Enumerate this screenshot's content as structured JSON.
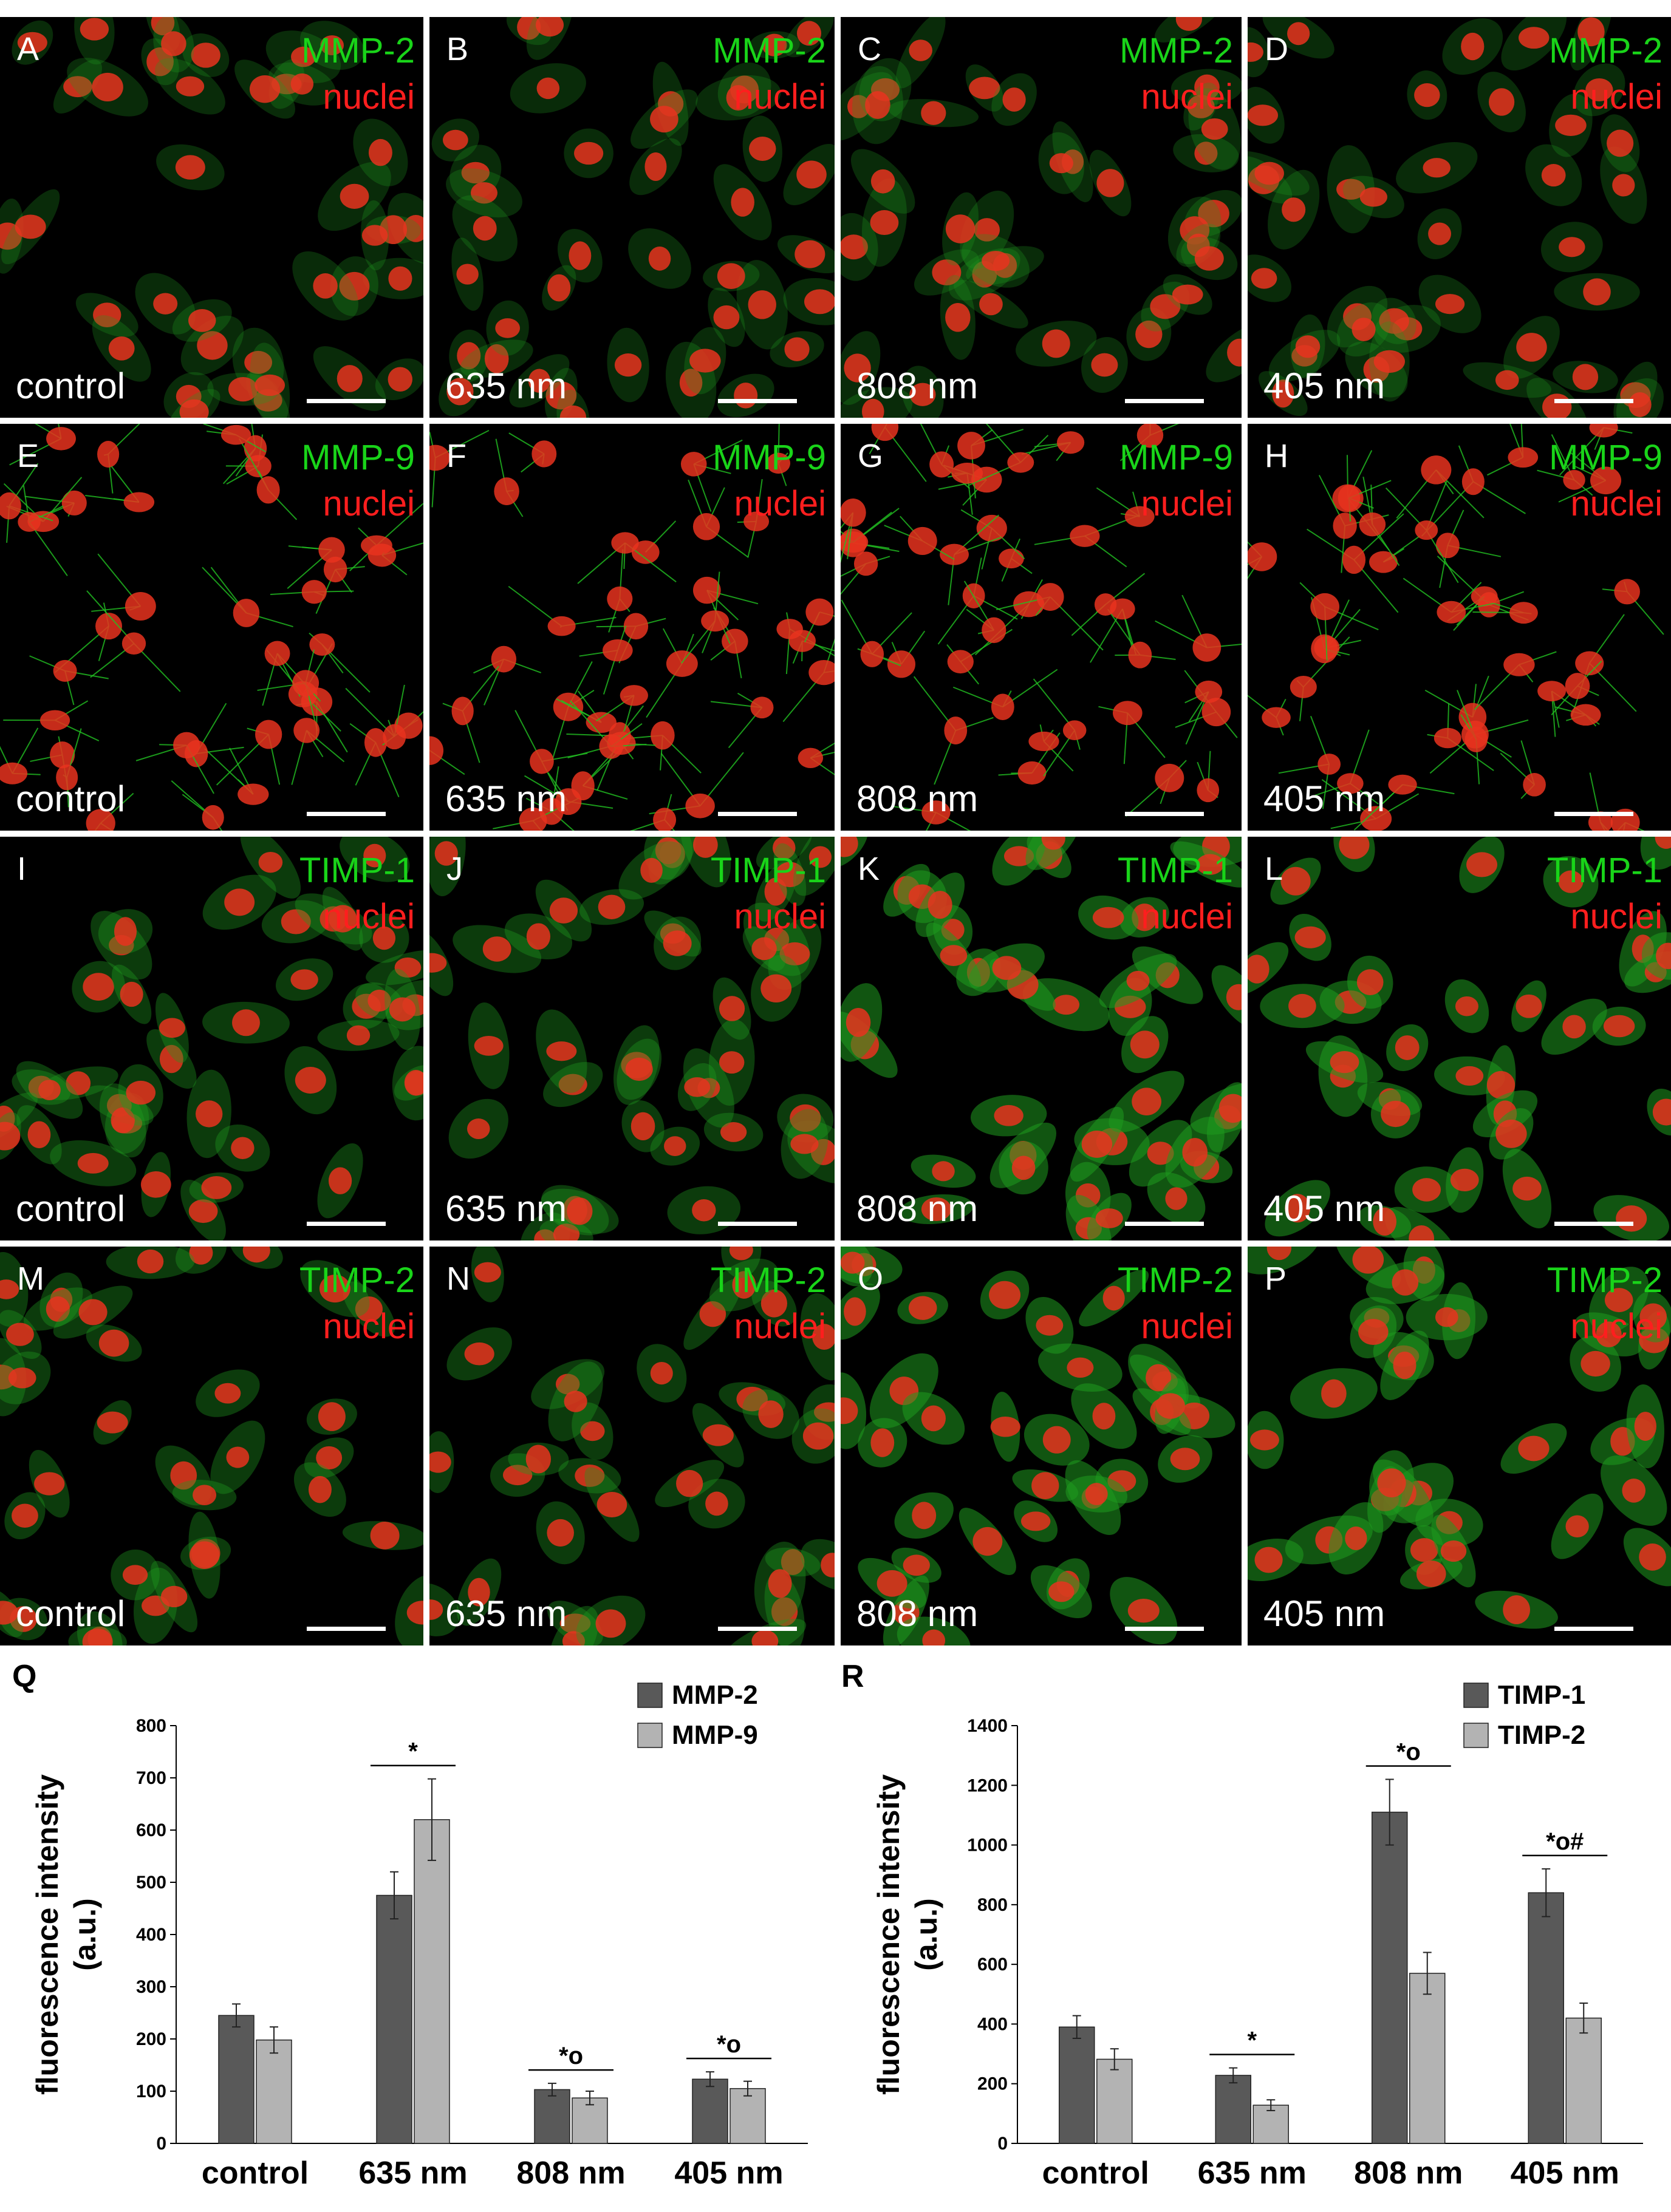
{
  "panels": [
    {
      "letter": "A",
      "marker": "MMP-2",
      "nuclei": "nuclei",
      "condition": "control"
    },
    {
      "letter": "B",
      "marker": "MMP-2",
      "nuclei": "nuclei",
      "condition": "635 nm"
    },
    {
      "letter": "C",
      "marker": "MMP-2",
      "nuclei": "nuclei",
      "condition": "808 nm"
    },
    {
      "letter": "D",
      "marker": "MMP-2",
      "nuclei": "nuclei",
      "condition": "405 nm"
    },
    {
      "letter": "E",
      "marker": "MMP-9",
      "nuclei": "nuclei",
      "condition": "control"
    },
    {
      "letter": "F",
      "marker": "MMP-9",
      "nuclei": "nuclei",
      "condition": "635 nm"
    },
    {
      "letter": "G",
      "marker": "MMP-9",
      "nuclei": "nuclei",
      "condition": "808 nm"
    },
    {
      "letter": "H",
      "marker": "MMP-9",
      "nuclei": "nuclei",
      "condition": "405 nm"
    },
    {
      "letter": "I",
      "marker": "TIMP-1",
      "nuclei": "nuclei",
      "condition": "control"
    },
    {
      "letter": "J",
      "marker": "TIMP-1",
      "nuclei": "nuclei",
      "condition": "635 nm"
    },
    {
      "letter": "K",
      "marker": "TIMP-1",
      "nuclei": "nuclei",
      "condition": "808 nm"
    },
    {
      "letter": "L",
      "marker": "TIMP-1",
      "nuclei": "nuclei",
      "condition": "405 nm"
    },
    {
      "letter": "M",
      "marker": "TIMP-2",
      "nuclei": "nuclei",
      "condition": "control"
    },
    {
      "letter": "N",
      "marker": "TIMP-2",
      "nuclei": "nuclei",
      "condition": "635 nm"
    },
    {
      "letter": "O",
      "marker": "TIMP-2",
      "nuclei": "nuclei",
      "condition": "808 nm"
    },
    {
      "letter": "P",
      "marker": "TIMP-2",
      "nuclei": "nuclei",
      "condition": "405 nm"
    }
  ],
  "colors": {
    "marker_text": "#19d419",
    "nuclei_text": "#ff1e1e",
    "series_dark": "#595959",
    "series_light": "#b3b3b3"
  },
  "chart_data": [
    {
      "type": "bar",
      "panel_letter": "Q",
      "categories": [
        "control",
        "635 nm",
        "808 nm",
        "405 nm"
      ],
      "ylabel": "fluorescence intensity (a.u.)",
      "ylim": [
        0,
        800
      ],
      "yticks": [
        0,
        100,
        200,
        300,
        400,
        500,
        600,
        700,
        800
      ],
      "grid": false,
      "legend_position": "top-right",
      "series": [
        {
          "name": "MMP-2",
          "values": [
            245,
            475,
            103,
            123
          ],
          "errors": [
            22,
            45,
            12,
            14
          ]
        },
        {
          "name": "MMP-9",
          "values": [
            198,
            620,
            87,
            105
          ],
          "errors": [
            25,
            78,
            13,
            14
          ]
        }
      ],
      "annotations": [
        {
          "category": "635 nm",
          "label": "*"
        },
        {
          "category": "808 nm",
          "label": "*o"
        },
        {
          "category": "405 nm",
          "label": "*o"
        }
      ]
    },
    {
      "type": "bar",
      "panel_letter": "R",
      "categories": [
        "control",
        "635 nm",
        "808 nm",
        "405 nm"
      ],
      "ylabel": "fluorescence intensity (a.u.)",
      "ylim": [
        0,
        1400
      ],
      "yticks": [
        0,
        200,
        400,
        600,
        800,
        1000,
        1200,
        1400
      ],
      "grid": false,
      "legend_position": "top-right",
      "series": [
        {
          "name": "TIMP-1",
          "values": [
            390,
            228,
            1110,
            840
          ],
          "errors": [
            38,
            25,
            110,
            80
          ]
        },
        {
          "name": "TIMP-2",
          "values": [
            282,
            128,
            570,
            420
          ],
          "errors": [
            35,
            18,
            70,
            50
          ]
        }
      ],
      "annotations": [
        {
          "category": "635 nm",
          "label": "*"
        },
        {
          "category": "808 nm",
          "label": "*o"
        },
        {
          "category": "405 nm",
          "label": "*o#"
        }
      ]
    }
  ]
}
